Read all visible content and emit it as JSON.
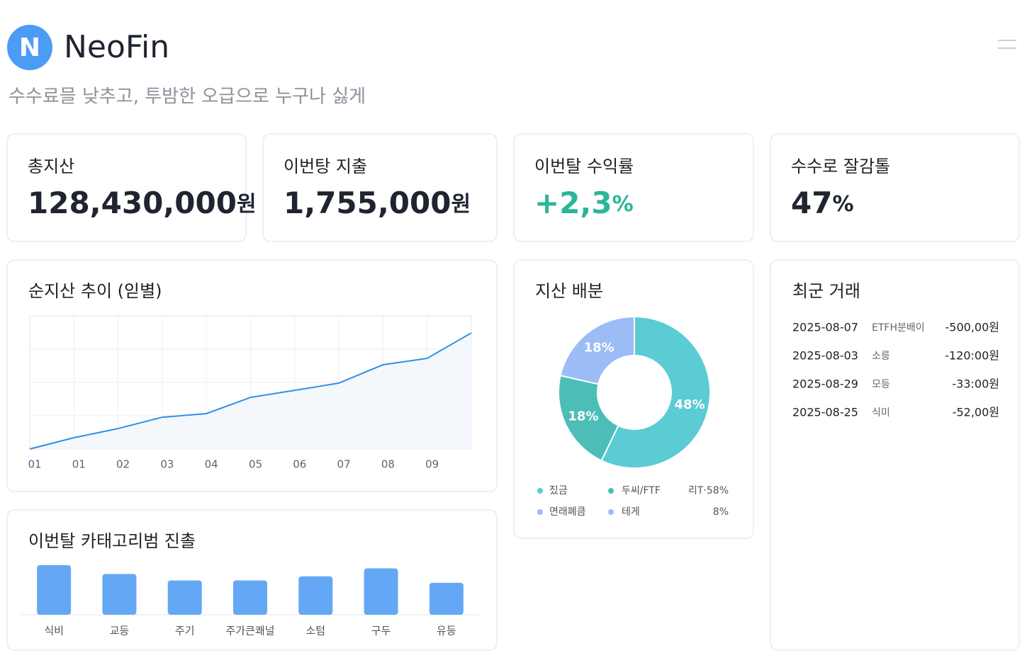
{
  "header": {
    "logo": "N",
    "brand": "NeoFin",
    "tagline": "수수료믈 낮추고, 투밤한 오급으로 누구나 싫게"
  },
  "stats": [
    {
      "label": "총지산",
      "value": "128,430,000",
      "unit": "원"
    },
    {
      "label": "이번탕 지출",
      "value": "1,755,000",
      "unit": "원"
    },
    {
      "label": "이번탈 수익률",
      "value": "+2,3",
      "unit": "%",
      "color": "#2bb59a"
    },
    {
      "label": "수수로 잘감톨",
      "value": "47",
      "unit": "%"
    }
  ],
  "chart_data": [
    {
      "type": "line",
      "title": "순지산 추이 (읻별)",
      "categories": [
        "01",
        "01",
        "02",
        "03",
        "04",
        "05",
        "06",
        "07",
        "08",
        "09",
        null
      ],
      "values": [
        0,
        8.5,
        15.4,
        23.9,
        26.6,
        38.8,
        44.1,
        49.5,
        63.3,
        68.1,
        87.2
      ],
      "ylim": [
        0,
        100
      ],
      "color": "#2f8fe6",
      "grid": true
    },
    {
      "type": "pie",
      "title": "지산 배분",
      "values": [
        48,
        18,
        18
      ],
      "value_labels": [
        "48%",
        "18%",
        "18%"
      ],
      "colors": [
        "#5bcbd4",
        "#4dbdb7",
        "#9bbcf5"
      ],
      "legend": [
        [
          "짔금",
          "두씨/FTF",
          "리T·58%"
        ],
        [
          "면래폐큼",
          "테게",
          "8%"
        ]
      ]
    },
    {
      "type": "bar",
      "title": "이번탈 카태고리범 진촐",
      "categories": [
        "식비",
        "교등",
        "주기",
        "주가큰쾌널",
        "소텀",
        "구두",
        "유등"
      ],
      "values": [
        62,
        51,
        43,
        43,
        48,
        58,
        40
      ],
      "color": "#64a8f5"
    }
  ],
  "transactions": {
    "title": "최군 거래",
    "rows": [
      [
        "2025-08-07",
        "ETFH분배이",
        "-500,00원"
      ],
      [
        "2025-08-03",
        "소릉",
        "-120:00원"
      ],
      [
        "2025-08-29",
        "모등",
        "-33:00원"
      ],
      [
        "2025-08-25",
        "식미",
        "-52,00원"
      ]
    ]
  }
}
